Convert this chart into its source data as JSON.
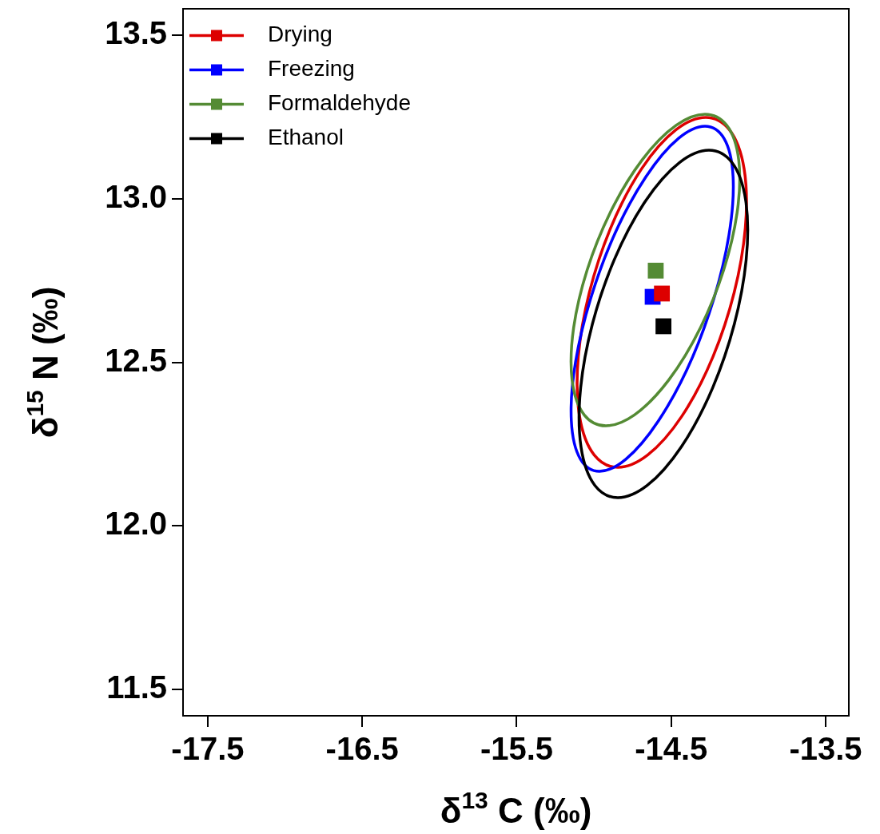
{
  "chart_data": {
    "type": "scatter",
    "xlabel": "δ$^{13}$ C (‰)",
    "ylabel": "δ$^{15}$ N (‰)",
    "xlim": [
      -17.66,
      -13.35
    ],
    "xticks": [
      -17.5,
      -16.5,
      -15.5,
      -14.5,
      -13.5
    ],
    "ylim": [
      11.42,
      13.58
    ],
    "yticks": [
      11.5,
      {
        "value": 12,
        "label": "12.0"
      },
      12.5,
      {
        "value": 13,
        "label": "13.0"
      },
      13.5
    ],
    "grid": false,
    "legend": "top left",
    "marker": "square",
    "series": [
      {
        "name": "Drying",
        "type": "scatter",
        "color": "#dd0000",
        "x": [
          -14.56
        ],
        "values": [
          12.71
        ]
      },
      {
        "name": "Freezing",
        "type": "scatter",
        "color": "#0000ff",
        "x": [
          -14.62
        ],
        "values": [
          12.7
        ]
      },
      {
        "name": "Formaldehyde",
        "type": "scatter",
        "color": "#548b34",
        "x": [
          -14.6
        ],
        "values": [
          12.78
        ]
      },
      {
        "name": "Ethanol",
        "type": "scatter",
        "color": "#000000",
        "x": [
          -14.55
        ],
        "values": [
          12.61
        ]
      }
    ]
  }
}
